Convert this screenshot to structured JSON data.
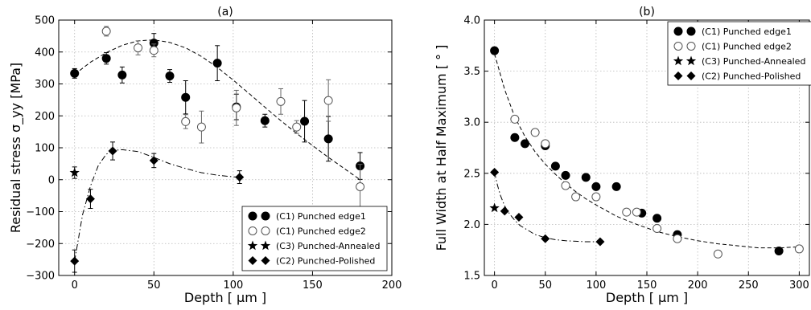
{
  "chart_data": [
    {
      "type": "scatter",
      "title": "(a)",
      "xlabel": "Depth [ μm ]",
      "ylabel": "Residual stress σ_yy [MPa]",
      "xlim": [
        -10,
        200
      ],
      "ylim": [
        -300,
        500
      ],
      "xticks": [
        0,
        50,
        100,
        150,
        200
      ],
      "yticks": [
        -300,
        -200,
        -100,
        0,
        100,
        200,
        300,
        400,
        500
      ],
      "xtick_labels": [
        "0",
        "50",
        "100",
        "150",
        "200"
      ],
      "ytick_labels": [
        "−300",
        "−200",
        "−100",
        "0",
        "100",
        "200",
        "300",
        "400",
        "500"
      ],
      "grid": true,
      "legend_position": "bottom-right",
      "series": [
        {
          "name": "(C1) Punched edge1",
          "marker": "filled-circle",
          "x": [
            0,
            20,
            30,
            50,
            60,
            70,
            90,
            102,
            120,
            145,
            160,
            180
          ],
          "y": [
            333,
            380,
            328,
            428,
            325,
            258,
            365,
            228,
            185,
            183,
            128,
            43
          ],
          "err": [
            15,
            18,
            25,
            30,
            20,
            52,
            55,
            40,
            20,
            65,
            70,
            42
          ]
        },
        {
          "name": "(C1) Punched edge2",
          "marker": "open-circle",
          "x": [
            20,
            40,
            50,
            70,
            80,
            102,
            130,
            140,
            160,
            180
          ],
          "y": [
            465,
            413,
            405,
            182,
            165,
            225,
            245,
            165,
            248,
            -22
          ],
          "err": [
            15,
            22,
            20,
            22,
            50,
            55,
            40,
            20,
            65,
            70
          ]
        },
        {
          "name": "(C3) Punched-Annealed",
          "marker": "star",
          "x": [
            0
          ],
          "y": [
            22
          ],
          "err": [
            18
          ]
        },
        {
          "name": "(C2) Punched-Polished",
          "marker": "diamond",
          "x": [
            0,
            10,
            24,
            50,
            104
          ],
          "y": [
            -255,
            -60,
            90,
            60,
            8
          ],
          "err": [
            35,
            30,
            28,
            22,
            20
          ]
        }
      ],
      "fits": [
        {
          "style": "dashed",
          "x": [
            0,
            10,
            20,
            30,
            40,
            50,
            60,
            70,
            80,
            90,
            100,
            110,
            120,
            130,
            140,
            150,
            160,
            170,
            180
          ],
          "y": [
            330,
            368,
            398,
            421,
            435,
            438,
            430,
            413,
            386,
            352,
            312,
            270,
            227,
            185,
            145,
            107,
            70,
            35,
            0
          ]
        },
        {
          "style": "dashdot",
          "x": [
            0,
            5,
            10,
            15,
            20,
            25,
            30,
            40,
            50,
            60,
            70,
            80,
            90,
            100,
            104
          ],
          "y": [
            -255,
            -110,
            -20,
            45,
            80,
            92,
            94,
            88,
            70,
            50,
            35,
            22,
            14,
            9,
            8
          ]
        }
      ]
    },
    {
      "type": "scatter",
      "title": "(b)",
      "xlabel": "Depth [ μm ]",
      "ylabel": "Full Width at Half Maximum [ ° ]",
      "xlim": [
        -10,
        310
      ],
      "ylim": [
        1.5,
        4.0
      ],
      "xticks": [
        0,
        50,
        100,
        150,
        200,
        250,
        300
      ],
      "yticks": [
        1.5,
        2.0,
        2.5,
        3.0,
        3.5,
        4.0
      ],
      "xtick_labels": [
        "0",
        "50",
        "100",
        "150",
        "200",
        "250",
        "300"
      ],
      "ytick_labels": [
        "1.5",
        "2.0",
        "2.5",
        "3.0",
        "3.5",
        "4.0"
      ],
      "grid": true,
      "legend_position": "top-right",
      "series": [
        {
          "name": "(C1) Punched edge1",
          "marker": "filled-circle",
          "x": [
            0,
            20,
            30,
            50,
            60,
            70,
            90,
            100,
            120,
            145,
            160,
            180,
            280
          ],
          "y": [
            3.7,
            2.85,
            2.79,
            2.77,
            2.57,
            2.48,
            2.46,
            2.37,
            2.37,
            2.11,
            2.06,
            1.9,
            1.74
          ]
        },
        {
          "name": "(C1) Punched edge2",
          "marker": "open-circle",
          "x": [
            20,
            40,
            50,
            70,
            80,
            100,
            130,
            140,
            160,
            180,
            220,
            300
          ],
          "y": [
            3.03,
            2.9,
            2.79,
            2.38,
            2.27,
            2.27,
            2.12,
            2.12,
            1.96,
            1.86,
            1.71,
            1.76
          ]
        },
        {
          "name": "(C3) Punched-Annealed",
          "marker": "star",
          "x": [
            0
          ],
          "y": [
            2.16
          ]
        },
        {
          "name": "(C2) Punched-Polished",
          "marker": "diamond",
          "x": [
            0,
            10,
            24,
            50,
            104
          ],
          "y": [
            2.51,
            2.13,
            2.07,
            1.86,
            1.83
          ]
        }
      ],
      "fits": [
        {
          "style": "dashed",
          "x": [
            0,
            10,
            20,
            30,
            40,
            50,
            60,
            70,
            80,
            90,
            100,
            120,
            140,
            160,
            180,
            200,
            220,
            240,
            260,
            280,
            300
          ],
          "y": [
            3.67,
            3.32,
            3.05,
            2.86,
            2.71,
            2.59,
            2.49,
            2.4,
            2.32,
            2.25,
            2.19,
            2.08,
            2.0,
            1.93,
            1.88,
            1.84,
            1.81,
            1.79,
            1.77,
            1.77,
            1.78
          ]
        },
        {
          "style": "dashdot",
          "x": [
            0,
            3,
            6,
            10,
            15,
            20,
            25,
            30,
            40,
            50,
            60,
            70,
            80,
            90,
            104
          ],
          "y": [
            2.51,
            2.38,
            2.28,
            2.18,
            2.1,
            2.04,
            1.99,
            1.96,
            1.9,
            1.87,
            1.85,
            1.84,
            1.835,
            1.83,
            1.83
          ]
        }
      ]
    }
  ]
}
